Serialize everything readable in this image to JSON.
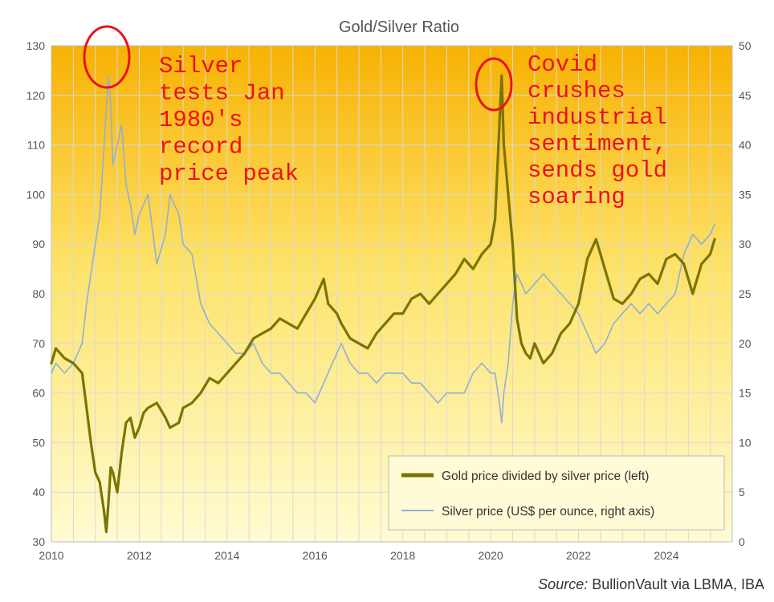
{
  "chart_data": {
    "type": "line",
    "title": "Gold/Silver Ratio",
    "x_ticks": [
      "2010",
      "2012",
      "2014",
      "2016",
      "2018",
      "2020",
      "2022",
      "2024"
    ],
    "xlim": [
      2010,
      2025.5
    ],
    "ylim_left": [
      30,
      130
    ],
    "ylim_right": [
      0,
      50
    ],
    "yticks_left": [
      "30",
      "40",
      "50",
      "60",
      "70",
      "80",
      "90",
      "100",
      "110",
      "120",
      "130"
    ],
    "yticks_right": [
      "0",
      "5",
      "10",
      "15",
      "20",
      "25",
      "30",
      "35",
      "40",
      "45",
      "50"
    ],
    "grid": true,
    "legend_position": "bottom-right",
    "series": [
      {
        "name": "Gold price divided by silver price (left)",
        "axis": "left",
        "color": "#7a7400",
        "x": [
          2010.0,
          2010.1,
          2010.3,
          2010.5,
          2010.7,
          2010.8,
          2010.9,
          2011.0,
          2011.1,
          2011.2,
          2011.25,
          2011.3,
          2011.35,
          2011.4,
          2011.5,
          2011.6,
          2011.7,
          2011.8,
          2011.9,
          2012.0,
          2012.1,
          2012.2,
          2012.4,
          2012.6,
          2012.7,
          2012.9,
          2013.0,
          2013.2,
          2013.4,
          2013.6,
          2013.8,
          2014.0,
          2014.2,
          2014.4,
          2014.6,
          2014.8,
          2015.0,
          2015.2,
          2015.4,
          2015.6,
          2015.8,
          2016.0,
          2016.1,
          2016.2,
          2016.3,
          2016.5,
          2016.6,
          2016.8,
          2017.0,
          2017.2,
          2017.4,
          2017.6,
          2017.8,
          2018.0,
          2018.2,
          2018.4,
          2018.6,
          2018.8,
          2019.0,
          2019.2,
          2019.4,
          2019.6,
          2019.8,
          2020.0,
          2020.1,
          2020.2,
          2020.25,
          2020.3,
          2020.4,
          2020.5,
          2020.6,
          2020.7,
          2020.8,
          2020.9,
          2021.0,
          2021.2,
          2021.4,
          2021.6,
          2021.8,
          2022.0,
          2022.2,
          2022.4,
          2022.6,
          2022.7,
          2022.8,
          2023.0,
          2023.2,
          2023.4,
          2023.6,
          2023.8,
          2024.0,
          2024.2,
          2024.4,
          2024.6,
          2024.8,
          2025.0,
          2025.1
        ],
        "values": [
          66,
          69,
          67,
          66,
          64,
          57,
          50,
          44,
          42,
          36,
          32,
          38,
          45,
          44,
          40,
          48,
          54,
          55,
          51,
          53,
          56,
          57,
          58,
          55,
          53,
          54,
          57,
          58,
          60,
          63,
          62,
          64,
          66,
          68,
          71,
          72,
          73,
          75,
          74,
          73,
          76,
          79,
          81,
          83,
          78,
          76,
          74,
          71,
          70,
          69,
          72,
          74,
          76,
          76,
          79,
          80,
          78,
          80,
          82,
          84,
          87,
          85,
          88,
          90,
          95,
          114,
          124,
          110,
          100,
          90,
          75,
          70,
          68,
          67,
          70,
          66,
          68,
          72,
          74,
          78,
          87,
          91,
          85,
          82,
          79,
          78,
          80,
          83,
          84,
          82,
          87,
          88,
          86,
          80,
          86,
          88,
          91
        ]
      },
      {
        "name": "Silver price (US$ per ounce, right axis)",
        "axis": "right",
        "color": "#91afd6",
        "x": [
          2010.0,
          2010.1,
          2010.3,
          2010.5,
          2010.7,
          2010.8,
          2010.9,
          2011.0,
          2011.1,
          2011.2,
          2011.3,
          2011.35,
          2011.4,
          2011.5,
          2011.6,
          2011.7,
          2011.8,
          2011.9,
          2012.0,
          2012.2,
          2012.4,
          2012.6,
          2012.7,
          2012.9,
          2013.0,
          2013.2,
          2013.4,
          2013.6,
          2013.8,
          2014.0,
          2014.2,
          2014.4,
          2014.6,
          2014.8,
          2015.0,
          2015.2,
          2015.4,
          2015.6,
          2015.8,
          2016.0,
          2016.2,
          2016.4,
          2016.6,
          2016.8,
          2017.0,
          2017.2,
          2017.4,
          2017.6,
          2017.8,
          2018.0,
          2018.2,
          2018.4,
          2018.6,
          2018.8,
          2019.0,
          2019.2,
          2019.4,
          2019.6,
          2019.8,
          2020.0,
          2020.1,
          2020.2,
          2020.25,
          2020.3,
          2020.4,
          2020.5,
          2020.6,
          2020.7,
          2020.8,
          2021.0,
          2021.2,
          2021.4,
          2021.6,
          2021.8,
          2022.0,
          2022.2,
          2022.4,
          2022.6,
          2022.8,
          2023.0,
          2023.2,
          2023.4,
          2023.6,
          2023.8,
          2024.0,
          2024.2,
          2024.4,
          2024.6,
          2024.8,
          2025.0,
          2025.1
        ],
        "values": [
          17,
          18,
          17,
          18,
          20,
          24,
          27,
          30,
          33,
          40,
          47,
          44,
          38,
          40,
          42,
          36,
          34,
          31,
          33,
          35,
          28,
          31,
          35,
          33,
          30,
          29,
          24,
          22,
          21,
          20,
          19,
          19,
          20,
          18,
          17,
          17,
          16,
          15,
          15,
          14,
          16,
          18,
          20,
          18,
          17,
          17,
          16,
          17,
          17,
          17,
          16,
          16,
          15,
          14,
          15,
          15,
          15,
          17,
          18,
          17,
          17,
          14,
          12,
          15,
          18,
          24,
          27,
          26,
          25,
          26,
          27,
          26,
          25,
          24,
          23,
          21,
          19,
          20,
          22,
          23,
          24,
          23,
          24,
          23,
          24,
          25,
          29,
          31,
          30,
          31,
          32
        ]
      }
    ],
    "annotations": [
      {
        "lines": [
          "Silver",
          "tests Jan",
          "1980's",
          "record",
          "price peak"
        ]
      },
      {
        "lines": [
          "Covid",
          "crushes",
          "industrial",
          "sentiment,",
          "sends gold",
          "soaring"
        ]
      }
    ]
  },
  "source": {
    "label": "Source:",
    "text": " BullionVault via LBMA, IBA"
  }
}
